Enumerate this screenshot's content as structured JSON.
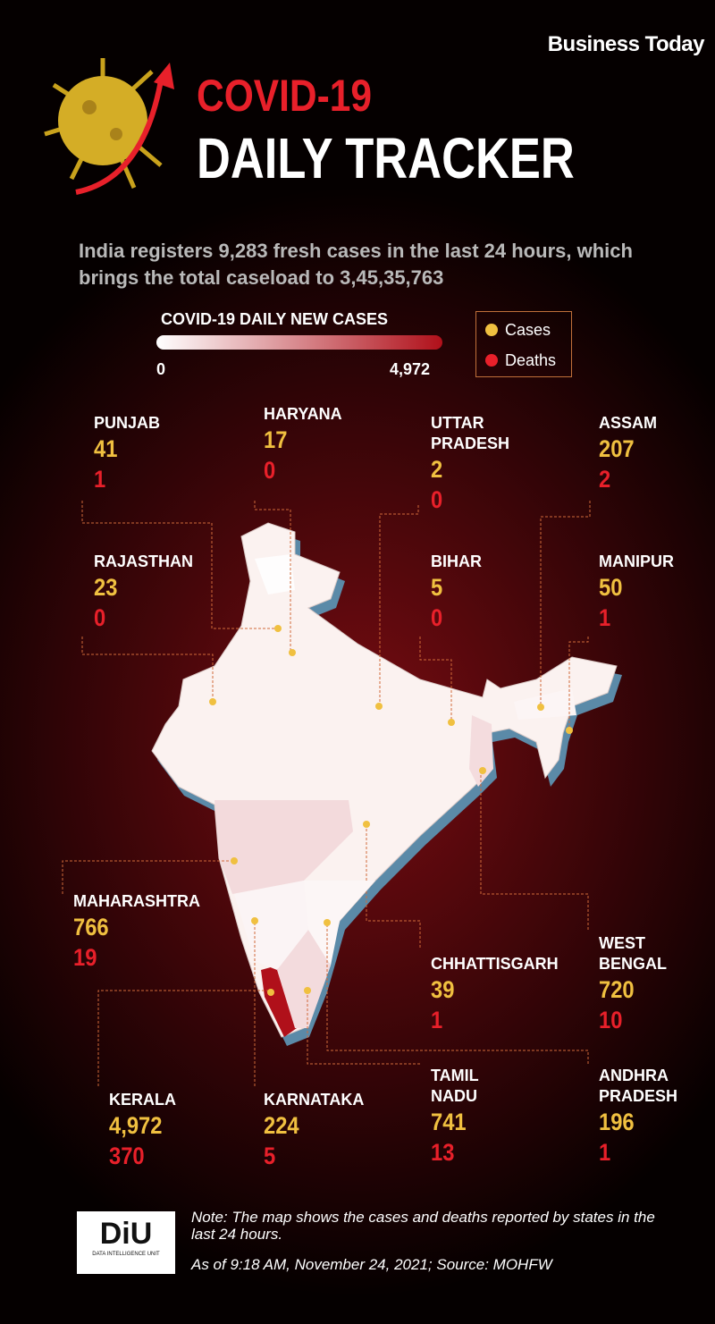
{
  "header": {
    "brand": "Business Today",
    "title_line1": "COVID-19",
    "title_line2": "DAILY TRACKER",
    "summary": "India registers 9,283 fresh cases in the last 24 hours, which brings the total caseload to 3,45,35,763"
  },
  "scale": {
    "title": "COVID-19 DAILY NEW CASES",
    "min": 0,
    "max": {
      "value": 4972,
      "label": "4,972"
    },
    "low_color": "#ffffff",
    "high_color": "#b0101a"
  },
  "key": {
    "cases": "Cases",
    "deaths": "Deaths",
    "cases_color": "#f0c040",
    "deaths_color": "#e8202a"
  },
  "states": [
    {
      "name": "PUNJAB",
      "cases": 41,
      "deaths": 1
    },
    {
      "name": "HARYANA",
      "cases": 17,
      "deaths": 0
    },
    {
      "name": "UTTAR PRADESH",
      "cases": 2,
      "deaths": 0
    },
    {
      "name": "ASSAM",
      "cases": 207,
      "deaths": 2
    },
    {
      "name": "RAJASTHAN",
      "cases": 23,
      "deaths": 0
    },
    {
      "name": "BIHAR",
      "cases": 5,
      "deaths": 0
    },
    {
      "name": "MANIPUR",
      "cases": 50,
      "deaths": 1
    },
    {
      "name": "MAHARASHTRA",
      "cases": 766,
      "deaths": 19
    },
    {
      "name": "CHHATTISGARH",
      "cases": 39,
      "deaths": 1
    },
    {
      "name": "WEST BENGAL",
      "cases": 720,
      "deaths": 10
    },
    {
      "name": "KERALA",
      "cases": {
        "value": 4972,
        "label": "4,972"
      },
      "deaths": 370
    },
    {
      "name": "KARNATAKA",
      "cases": 224,
      "deaths": 5
    },
    {
      "name": "TAMIL NADU",
      "cases": 741,
      "deaths": 13
    },
    {
      "name": "ANDHRA PRADESH",
      "cases": 196,
      "deaths": 1
    }
  ],
  "footer": {
    "logo": "DiU",
    "logo_sub": "DATA INTELLIGENCE UNIT",
    "note": "Note: The map shows the cases and deaths reported by states in the last 24 hours.",
    "source": "As of 9:18 AM, November 24, 2021; Source: MOHFW"
  }
}
